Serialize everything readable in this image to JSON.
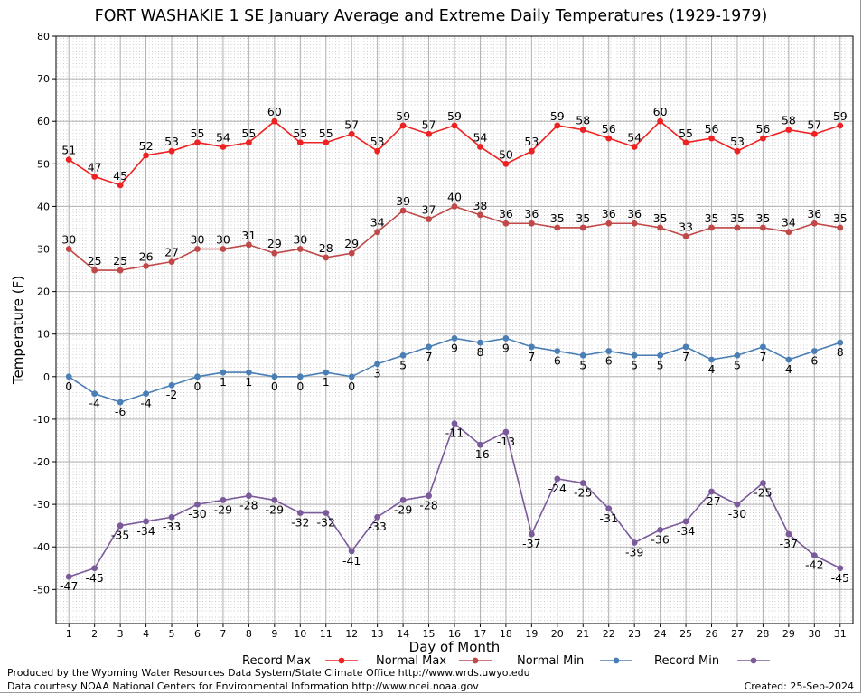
{
  "title": "FORT WASHAKIE 1 SE January Average and Extreme Daily Temperatures (1929-1979)",
  "footer": {
    "line1": "Produced by the Wyoming Water Resources Data System/State Climate Office http://www.wrds.uwyo.edu",
    "line2": "Data courtesy NOAA National Centers for Environmental Information http://www.ncei.noaa.gov",
    "created": "Created:  25-Sep-2024"
  },
  "chart_data": {
    "type": "line",
    "title": "FORT WASHAKIE 1 SE January Average and Extreme Daily Temperatures (1929-1979)",
    "xlabel": "Day of Month",
    "ylabel": "Temperature (F)",
    "x": [
      1,
      2,
      3,
      4,
      5,
      6,
      7,
      8,
      9,
      10,
      11,
      12,
      13,
      14,
      15,
      16,
      17,
      18,
      19,
      20,
      21,
      22,
      23,
      24,
      25,
      26,
      27,
      28,
      29,
      30,
      31
    ],
    "xlim": [
      0.5,
      31.5
    ],
    "ylim": [
      -58,
      80
    ],
    "yticks": [
      -50,
      -40,
      -30,
      -20,
      -10,
      0,
      10,
      20,
      30,
      40,
      50,
      60,
      70,
      80
    ],
    "grid": true,
    "legend_position": "bottom",
    "series": [
      {
        "name": "Record Max",
        "color": "#ee2222",
        "label_position": "above",
        "values": [
          51,
          47,
          45,
          52,
          53,
          55,
          54,
          55,
          60,
          55,
          55,
          57,
          53,
          59,
          57,
          59,
          54,
          50,
          53,
          59,
          58,
          56,
          54,
          60,
          55,
          56,
          53,
          56,
          58,
          57,
          59
        ]
      },
      {
        "name": "Normal Max",
        "color": "#c04848",
        "label_position": "above",
        "values": [
          30,
          25,
          25,
          26,
          27,
          30,
          30,
          31,
          29,
          30,
          28,
          29,
          34,
          39,
          37,
          40,
          38,
          36,
          36,
          35,
          35,
          36,
          36,
          35,
          33,
          35,
          35,
          35,
          34,
          36,
          35
        ]
      },
      {
        "name": "Normal Min",
        "color": "#4a7fb5",
        "label_position": "below",
        "values": [
          0,
          -4,
          -6,
          -4,
          -2,
          0,
          1,
          1,
          0,
          0,
          1,
          0,
          3,
          5,
          7,
          9,
          8,
          9,
          7,
          6,
          5,
          6,
          5,
          5,
          7,
          4,
          5,
          7,
          4,
          6,
          8
        ]
      },
      {
        "name": "Record Min",
        "color": "#7a5a9a",
        "label_position": "below",
        "values": [
          -47,
          -45,
          -35,
          -34,
          -33,
          -30,
          -29,
          -28,
          -29,
          -32,
          -32,
          -41,
          -33,
          -29,
          -28,
          -11,
          -16,
          -13,
          -37,
          -24,
          -25,
          -31,
          -39,
          -36,
          -34,
          -27,
          -30,
          -25,
          -37,
          -42,
          -45
        ]
      }
    ]
  }
}
